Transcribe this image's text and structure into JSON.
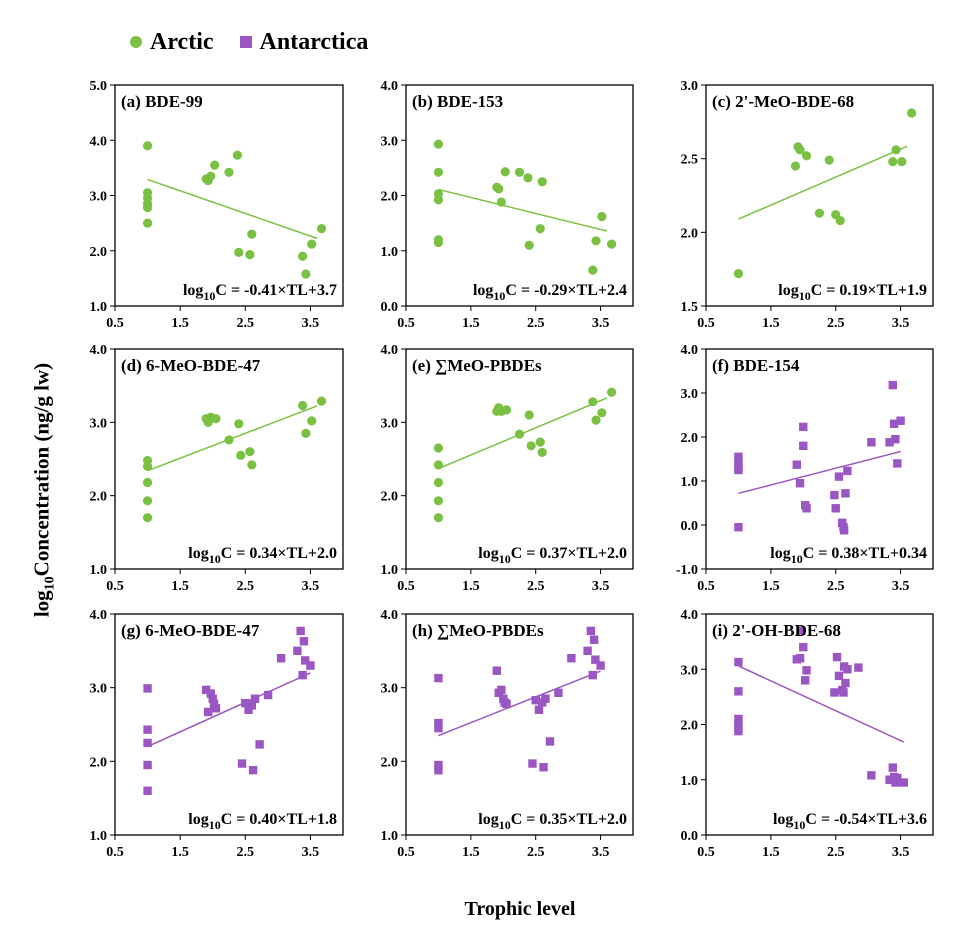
{
  "legend": [
    {
      "label": "Arctic",
      "color": "#7ac143",
      "marker": "circle"
    },
    {
      "label": "Antarctica",
      "color": "#9a56c2",
      "marker": "square"
    }
  ],
  "ylabel_prefix": "log",
  "ylabel_sub": "10",
  "ylabel_rest": "Concentration (ng/g lw)",
  "xlabel": "Trophic level",
  "chart_data": [
    {
      "type": "scatter",
      "panel": "(a) BDE-99",
      "group": "Arctic",
      "color": "#7ac143",
      "marker": "circle",
      "xlim": [
        0.5,
        4.0
      ],
      "xticks": [
        0.5,
        1.5,
        2.5,
        3.5
      ],
      "ylim": [
        1.0,
        5.0
      ],
      "yticks": [
        1.0,
        2.0,
        3.0,
        4.0,
        5.0
      ],
      "x": [
        1.0,
        1.0,
        1.0,
        1.0,
        1.0,
        1.0,
        1.9,
        1.93,
        1.97,
        2.03,
        2.25,
        2.38,
        2.4,
        2.57,
        2.6,
        3.38,
        3.43,
        3.52,
        3.67
      ],
      "y": [
        3.9,
        3.05,
        2.95,
        2.85,
        2.78,
        2.5,
        3.3,
        3.27,
        3.35,
        3.55,
        3.42,
        3.73,
        1.97,
        1.93,
        2.3,
        1.9,
        1.58,
        2.12,
        2.4
      ],
      "regression": {
        "slope": -0.41,
        "intercept": 3.7,
        "xrange": [
          1.0,
          3.6
        ]
      },
      "equation": {
        "pre": "log",
        "sub": "10",
        "post": "C = -0.41×TL+3.7"
      }
    },
    {
      "type": "scatter",
      "panel": "(b) BDE-153",
      "group": "Arctic",
      "color": "#7ac143",
      "marker": "circle",
      "xlim": [
        0.5,
        4.0
      ],
      "xticks": [
        0.5,
        1.5,
        2.5,
        3.5
      ],
      "ylim": [
        0.0,
        4.0
      ],
      "yticks": [
        0.0,
        1.0,
        2.0,
        3.0,
        4.0
      ],
      "x": [
        1.0,
        1.0,
        1.0,
        1.0,
        1.0,
        1.0,
        1.9,
        1.93,
        1.97,
        2.03,
        2.25,
        2.38,
        2.4,
        2.57,
        2.6,
        3.38,
        3.43,
        3.52,
        3.67
      ],
      "y": [
        2.93,
        2.42,
        2.03,
        1.92,
        1.2,
        1.15,
        2.15,
        2.12,
        1.88,
        2.43,
        2.42,
        2.32,
        1.1,
        1.4,
        2.25,
        0.65,
        1.18,
        1.62,
        1.12
      ],
      "regression": {
        "slope": -0.29,
        "intercept": 2.4,
        "xrange": [
          1.0,
          3.6
        ]
      },
      "equation": {
        "pre": "log",
        "sub": "10",
        "post": "C = -0.29×TL+2.4"
      }
    },
    {
      "type": "scatter",
      "panel": "(c) 2'-MeO-BDE-68",
      "group": "Arctic",
      "color": "#7ac143",
      "marker": "circle",
      "xlim": [
        0.5,
        4.0
      ],
      "xticks": [
        0.5,
        1.5,
        2.5,
        3.5
      ],
      "ylim": [
        1.5,
        3.0
      ],
      "yticks": [
        1.5,
        2.0,
        2.5,
        3.0
      ],
      "x": [
        1.0,
        1.88,
        1.92,
        1.95,
        2.05,
        2.25,
        2.4,
        2.5,
        2.57,
        3.38,
        3.43,
        3.52,
        3.67
      ],
      "y": [
        1.72,
        2.45,
        2.58,
        2.56,
        2.52,
        2.13,
        2.49,
        2.12,
        2.08,
        2.48,
        2.56,
        2.48,
        2.81
      ],
      "regression": {
        "slope": 0.19,
        "intercept": 1.9,
        "xrange": [
          1.0,
          3.6
        ]
      },
      "equation": {
        "pre": "log",
        "sub": "10",
        "post": "C = 0.19×TL+1.9"
      }
    },
    {
      "type": "scatter",
      "panel": "(d) 6-MeO-BDE-47",
      "group": "Arctic",
      "color": "#7ac143",
      "marker": "circle",
      "xlim": [
        0.5,
        4.0
      ],
      "xticks": [
        0.5,
        1.5,
        2.5,
        3.5
      ],
      "ylim": [
        1.0,
        4.0
      ],
      "yticks": [
        1.0,
        2.0,
        3.0,
        4.0
      ],
      "x": [
        1.0,
        1.0,
        1.0,
        1.0,
        1.0,
        1.9,
        1.93,
        1.97,
        2.05,
        2.25,
        2.4,
        2.43,
        2.57,
        2.6,
        3.38,
        3.43,
        3.52,
        3.67
      ],
      "y": [
        2.48,
        2.4,
        2.18,
        1.93,
        1.7,
        3.05,
        3.0,
        3.07,
        3.05,
        2.76,
        2.98,
        2.55,
        2.6,
        2.42,
        3.23,
        2.85,
        3.02,
        3.29
      ],
      "regression": {
        "slope": 0.34,
        "intercept": 2.0,
        "xrange": [
          1.0,
          3.6
        ]
      },
      "equation": {
        "pre": "log",
        "sub": "10",
        "post": "C = 0.34×TL+2.0"
      }
    },
    {
      "type": "scatter",
      "panel": "(e) ∑MeO-PBDEs",
      "group": "Arctic",
      "color": "#7ac143",
      "marker": "circle",
      "xlim": [
        0.5,
        4.0
      ],
      "xticks": [
        0.5,
        1.5,
        2.5,
        3.5
      ],
      "ylim": [
        1.0,
        4.0
      ],
      "yticks": [
        1.0,
        2.0,
        3.0,
        4.0
      ],
      "x": [
        1.0,
        1.0,
        1.0,
        1.0,
        1.0,
        1.9,
        1.93,
        1.97,
        2.05,
        2.25,
        2.4,
        2.43,
        2.57,
        2.6,
        3.38,
        3.43,
        3.52,
        3.67
      ],
      "y": [
        2.65,
        2.42,
        2.18,
        1.93,
        1.7,
        3.15,
        3.2,
        3.15,
        3.17,
        2.84,
        3.1,
        2.68,
        2.73,
        2.59,
        3.28,
        3.03,
        3.13,
        3.41
      ],
      "regression": {
        "slope": 0.37,
        "intercept": 2.0,
        "xrange": [
          1.0,
          3.6
        ]
      },
      "equation": {
        "pre": "log",
        "sub": "10",
        "post": "C = 0.37×TL+2.0"
      }
    },
    {
      "type": "scatter",
      "panel": "(f) BDE-154",
      "group": "Antarctica",
      "color": "#9a56c2",
      "marker": "square",
      "xlim": [
        0.5,
        4.0
      ],
      "xticks": [
        0.5,
        1.5,
        2.5,
        3.5
      ],
      "ylim": [
        -1.0,
        4.0
      ],
      "yticks": [
        -1.0,
        0.0,
        1.0,
        2.0,
        3.0,
        4.0
      ],
      "x": [
        1.0,
        1.0,
        1.0,
        1.0,
        1.0,
        1.0,
        1.9,
        1.95,
        2.0,
        2.0,
        2.03,
        2.05,
        2.48,
        2.5,
        2.55,
        2.6,
        2.62,
        2.63,
        2.65,
        2.68,
        3.05,
        3.33,
        3.38,
        3.4,
        3.42,
        3.45,
        3.5
      ],
      "y": [
        1.55,
        1.45,
        1.38,
        1.3,
        1.25,
        -0.05,
        1.37,
        0.95,
        2.23,
        1.8,
        0.45,
        0.38,
        0.68,
        0.38,
        1.1,
        0.05,
        -0.05,
        -0.12,
        0.72,
        1.23,
        1.88,
        1.88,
        3.18,
        2.3,
        1.95,
        1.4,
        2.37
      ],
      "regression": {
        "slope": 0.38,
        "intercept": 0.34,
        "xrange": [
          1.0,
          3.5
        ]
      },
      "equation": {
        "pre": "log",
        "sub": "10",
        "post": "C = 0.38×TL+0.34"
      }
    },
    {
      "type": "scatter",
      "panel": "(g) 6-MeO-BDE-47",
      "group": "Antarctica",
      "color": "#9a56c2",
      "marker": "square",
      "xlim": [
        0.5,
        4.0
      ],
      "xticks": [
        0.5,
        1.5,
        2.5,
        3.5
      ],
      "ylim": [
        1.0,
        4.0
      ],
      "yticks": [
        1.0,
        2.0,
        3.0,
        4.0
      ],
      "x": [
        1.0,
        1.0,
        1.0,
        1.0,
        1.0,
        1.9,
        1.93,
        1.97,
        2.0,
        2.02,
        2.05,
        2.45,
        2.5,
        2.55,
        2.6,
        2.62,
        2.65,
        2.72,
        2.85,
        3.05,
        3.3,
        3.35,
        3.38,
        3.4,
        3.42,
        3.5
      ],
      "y": [
        2.99,
        2.43,
        2.25,
        1.95,
        1.6,
        2.97,
        2.67,
        2.92,
        2.85,
        2.78,
        2.72,
        1.97,
        2.79,
        2.7,
        2.76,
        1.88,
        2.85,
        2.23,
        2.9,
        3.4,
        3.5,
        3.77,
        3.17,
        3.63,
        3.37,
        3.3
      ],
      "regression": {
        "slope": 0.4,
        "intercept": 1.8,
        "xrange": [
          1.0,
          3.5
        ]
      },
      "equation": {
        "pre": "log",
        "sub": "10",
        "post": "C = 0.40×TL+1.8"
      }
    },
    {
      "type": "scatter",
      "panel": "(h) ∑MeO-PBDEs",
      "group": "Antarctica",
      "color": "#9a56c2",
      "marker": "square",
      "xlim": [
        0.5,
        4.0
      ],
      "xticks": [
        0.5,
        1.5,
        2.5,
        3.5
      ],
      "ylim": [
        1.0,
        4.0
      ],
      "yticks": [
        1.0,
        2.0,
        3.0,
        4.0
      ],
      "x": [
        1.0,
        1.0,
        1.0,
        1.0,
        1.0,
        1.9,
        1.93,
        1.97,
        2.0,
        2.02,
        2.05,
        2.45,
        2.5,
        2.55,
        2.6,
        2.62,
        2.65,
        2.72,
        2.85,
        3.05,
        3.3,
        3.35,
        3.38,
        3.4,
        3.42,
        3.5
      ],
      "y": [
        3.13,
        2.52,
        2.45,
        1.95,
        1.88,
        3.23,
        2.93,
        2.97,
        2.85,
        2.8,
        2.78,
        1.97,
        2.83,
        2.7,
        2.8,
        1.92,
        2.85,
        2.27,
        2.93,
        3.4,
        3.5,
        3.77,
        3.17,
        3.65,
        3.38,
        3.3
      ],
      "regression": {
        "slope": 0.35,
        "intercept": 2.0,
        "xrange": [
          1.0,
          3.5
        ]
      },
      "equation": {
        "pre": "log",
        "sub": "10",
        "post": "C = 0.35×TL+2.0"
      }
    },
    {
      "type": "scatter",
      "panel": "(i) 2'-OH-BDE-68",
      "group": "Antarctica",
      "color": "#9a56c2",
      "marker": "square",
      "xlim": [
        0.5,
        4.0
      ],
      "xticks": [
        0.5,
        1.5,
        2.5,
        3.5
      ],
      "ylim": [
        0.0,
        4.0
      ],
      "yticks": [
        0.0,
        1.0,
        2.0,
        3.0,
        4.0
      ],
      "x": [
        1.0,
        1.0,
        1.0,
        1.0,
        1.0,
        1.0,
        1.9,
        1.95,
        1.97,
        2.0,
        2.03,
        2.05,
        2.48,
        2.52,
        2.55,
        2.6,
        2.62,
        2.63,
        2.65,
        2.68,
        2.85,
        3.05,
        3.33,
        3.38,
        3.4,
        3.42,
        3.45,
        3.55
      ],
      "y": [
        3.13,
        2.6,
        2.1,
        2.0,
        1.95,
        1.88,
        3.18,
        3.2,
        3.7,
        3.4,
        2.8,
        2.98,
        2.58,
        3.22,
        2.88,
        2.62,
        2.58,
        3.05,
        2.75,
        3.0,
        3.03,
        1.08,
        1.0,
        1.22,
        1.05,
        0.95,
        1.03,
        0.95
      ],
      "regression": {
        "slope": -0.54,
        "intercept": 3.6,
        "xrange": [
          1.0,
          3.55
        ]
      },
      "equation": {
        "pre": "log",
        "sub": "10",
        "post": "C = -0.54×TL+3.6"
      }
    }
  ]
}
